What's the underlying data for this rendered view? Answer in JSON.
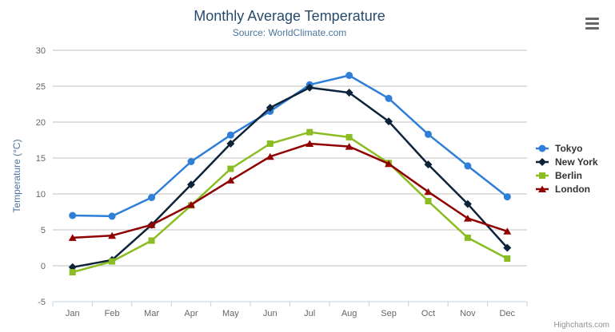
{
  "chart_data": {
    "type": "line",
    "title": "Monthly Average Temperature",
    "subtitle": "Source: WorldClimate.com",
    "categories": [
      "Jan",
      "Feb",
      "Mar",
      "Apr",
      "May",
      "Jun",
      "Jul",
      "Aug",
      "Sep",
      "Oct",
      "Nov",
      "Dec"
    ],
    "xlabel": "",
    "ylabel": "Temperature (°C)",
    "ylim": [
      -5,
      30
    ],
    "ytick_step": 5,
    "grid": true,
    "legend_position": "right",
    "series": [
      {
        "name": "Tokyo",
        "color": "#2f7ed8",
        "marker": "circle",
        "values": [
          7.0,
          6.9,
          9.5,
          14.5,
          18.2,
          21.5,
          25.2,
          26.5,
          23.3,
          18.3,
          13.9,
          9.6
        ]
      },
      {
        "name": "New York",
        "color": "#0d233a",
        "marker": "diamond",
        "values": [
          -0.2,
          0.8,
          5.7,
          11.3,
          17.0,
          22.0,
          24.8,
          24.1,
          20.1,
          14.1,
          8.6,
          2.5
        ]
      },
      {
        "name": "Berlin",
        "color": "#8bbc21",
        "marker": "square",
        "values": [
          -0.9,
          0.6,
          3.5,
          8.4,
          13.5,
          17.0,
          18.6,
          17.9,
          14.3,
          9.0,
          3.9,
          1.0
        ]
      },
      {
        "name": "London",
        "color": "#910000",
        "marker": "triangle",
        "values": [
          3.9,
          4.2,
          5.7,
          8.5,
          11.9,
          15.2,
          17.0,
          16.6,
          14.2,
          10.3,
          6.6,
          4.8
        ]
      }
    ],
    "credits": "Highcharts.com"
  },
  "colors": {
    "title": "#274b6d",
    "subtitle": "#4d759e",
    "axis_labels": "#666666",
    "axis_title": "#4d759e",
    "grid": "#c0c0c0",
    "axis_line": "#c0d0e0",
    "tick": "#c0d0e0",
    "legend_text": "#333333",
    "credits": "#909090",
    "burger": "#666666"
  },
  "icons": {
    "context_menu": "hamburger-icon"
  }
}
